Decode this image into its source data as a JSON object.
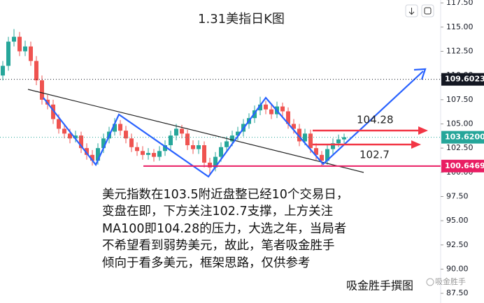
{
  "chart_data": {
    "type": "candlestick",
    "title": "1.31美指日K图",
    "open": [
      110,
      111,
      113.5,
      114,
      112.5,
      113,
      111.5,
      109.5,
      107.5,
      107,
      105.5,
      104.5,
      104,
      103.5,
      103.8,
      102.5,
      101.8,
      101.2,
      102.5,
      103.5,
      104.2,
      105,
      104.3,
      103.5,
      102.6,
      102.2,
      101.8,
      102,
      101.6,
      102.2,
      102.8,
      103.8,
      104.5,
      104,
      102.8,
      102.4,
      102.8,
      101,
      100.5,
      101.6,
      102.6,
      103.2,
      103.8,
      104.2,
      105,
      105.6,
      106.4,
      107,
      106.5,
      106,
      106.8,
      106.3,
      105,
      104.5,
      103.2,
      104,
      102.5,
      101.8,
      101.2,
      102.4,
      103,
      103.4
    ],
    "high": [
      111.5,
      114,
      114.8,
      114.5,
      113.6,
      113.5,
      112,
      110,
      108,
      107.5,
      106,
      105,
      104.5,
      104.3,
      104.2,
      103,
      102.3,
      103,
      104,
      104.7,
      105.6,
      105.4,
      104.8,
      104,
      103.1,
      102.7,
      102.5,
      102.4,
      102.7,
      103.3,
      104.3,
      105,
      104.9,
      104.4,
      103.3,
      103.3,
      103.2,
      101.5,
      102.1,
      103.1,
      103.7,
      104.3,
      104.7,
      105.5,
      106.1,
      106.9,
      107.8,
      107.4,
      107,
      107.3,
      107.2,
      106.7,
      105.5,
      105,
      104.5,
      104.4,
      103,
      102.2,
      102.8,
      103.5,
      103.9,
      104
    ],
    "low": [
      109.5,
      110.5,
      113,
      112,
      112,
      111,
      109,
      107,
      106.5,
      105,
      104,
      103.5,
      103,
      103.1,
      102,
      101.3,
      100.7,
      100.8,
      102,
      103,
      103.8,
      103.8,
      103,
      102.1,
      101.7,
      101.3,
      101.3,
      101.1,
      101.2,
      101.7,
      102.3,
      103.3,
      103.5,
      102.3,
      101.9,
      101.9,
      100.5,
      99.8,
      100.1,
      101.1,
      102.1,
      102.7,
      103.3,
      103.7,
      104.5,
      105.1,
      105.9,
      106,
      105.5,
      105.6,
      105.8,
      104.5,
      104,
      102.7,
      102.8,
      102,
      101.3,
      100.7,
      100.8,
      101.9,
      102.6,
      103
    ],
    "close": [
      111,
      113.5,
      114,
      112.5,
      113,
      111.5,
      109.5,
      107.5,
      107,
      105.5,
      104.5,
      104,
      103.5,
      103.8,
      102.5,
      101.8,
      101.2,
      102.5,
      103.5,
      104.2,
      105,
      104.3,
      103.5,
      102.6,
      102.2,
      101.8,
      102,
      101.6,
      102.2,
      102.8,
      103.8,
      104.5,
      104,
      102.8,
      102.4,
      102.8,
      101,
      100.5,
      101.6,
      102.6,
      103.2,
      103.8,
      104.2,
      105,
      105.6,
      106.4,
      107,
      106.5,
      106,
      106.8,
      106.3,
      105,
      104.5,
      103.2,
      104,
      102.5,
      101.8,
      101.2,
      102.4,
      103,
      103.4,
      103.62
    ],
    "up_color": "#26a69a",
    "down_color": "#ef5350",
    "ylim": [
      86.5,
      117.8
    ],
    "yticks": [
      {
        "value": 87.5,
        "label": "87.50"
      },
      {
        "value": 90,
        "label": "90.00"
      },
      {
        "value": 92.5,
        "label": "92.50"
      },
      {
        "value": 95,
        "label": "95.00"
      },
      {
        "value": 97.5,
        "label": "97.50"
      },
      {
        "value": 100,
        "label": "100.00"
      },
      {
        "value": 102.5,
        "label": "102.50"
      },
      {
        "value": 105,
        "label": "105.00"
      },
      {
        "value": 107.5,
        "label": "107.50"
      },
      {
        "value": 110,
        "label": "110.00"
      },
      {
        "value": 112.5,
        "label": "112.50"
      },
      {
        "value": 115,
        "label": "115.00"
      },
      {
        "value": 117.5,
        "label": "117.50"
      }
    ],
    "price_lines": [
      {
        "value": 109.6023,
        "label": "109.6023",
        "color": "#131722",
        "style": "dotted"
      },
      {
        "value": 103.62,
        "label": "103.6200",
        "color": "#26a69a",
        "style": "dotted"
      },
      {
        "value": 100.6469,
        "label": "100.6469",
        "color": "#e91e63",
        "style": "solid"
      }
    ],
    "annotations": [
      {
        "text": "104.28"
      },
      {
        "text": "102.7"
      }
    ],
    "notes": [
      "美元指数在103.5附近盘整已经10个交易日，",
      "变盘在即，下方关注102.7支撑，上方关注",
      "MA100即104.28的压力，大选之年，当局者",
      "不希望看到弱势美元，故此，笔者吸金胜手",
      "倾向于看多美元，框架思路，仅供参考"
    ],
    "signature": "吸金胜手撰图",
    "watermark": "吸金胜手"
  }
}
